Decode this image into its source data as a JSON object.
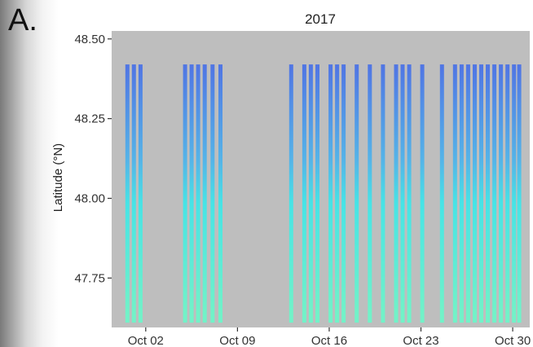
{
  "panel_label": "A.",
  "chart_data": {
    "type": "scatter",
    "title": "2017",
    "xlabel": "",
    "ylabel": "Latitude (°N)",
    "x_ticks": [
      {
        "label": "Oct 02",
        "day": 2
      },
      {
        "label": "Oct 09",
        "day": 9
      },
      {
        "label": "Oct 16",
        "day": 16
      },
      {
        "label": "Oct 23",
        "day": 23
      },
      {
        "label": "Oct 30",
        "day": 30
      }
    ],
    "y_ticks": [
      {
        "label": "48.50",
        "value": 48.5
      },
      {
        "label": "48.25",
        "value": 48.25
      },
      {
        "label": "48.00",
        "value": 48.0
      },
      {
        "label": "47.75",
        "value": 47.75
      }
    ],
    "xlim_day": [
      -0.6,
      31.3
    ],
    "ylim": [
      47.595,
      48.525
    ],
    "track_lat_range": [
      47.61,
      48.42
    ],
    "track_days": [
      0.6,
      1.1,
      1.6,
      5.0,
      5.5,
      6.0,
      6.5,
      7.1,
      7.7,
      13.1,
      14.1,
      14.6,
      15.1,
      16.1,
      16.6,
      17.1,
      18.1,
      19.1,
      20.1,
      21.1,
      21.6,
      22.1,
      23.1,
      24.6,
      25.6,
      26.1,
      26.6,
      27.1,
      27.6,
      28.1,
      28.6,
      29.1,
      29.6,
      30.1,
      30.5
    ],
    "grid": false,
    "colors": {
      "panel_background": "#bebebe",
      "tick": "#333333",
      "track_low": "#6ef5c8",
      "track_mid": "#40e6e8",
      "track_high": "#4a72e6"
    }
  }
}
